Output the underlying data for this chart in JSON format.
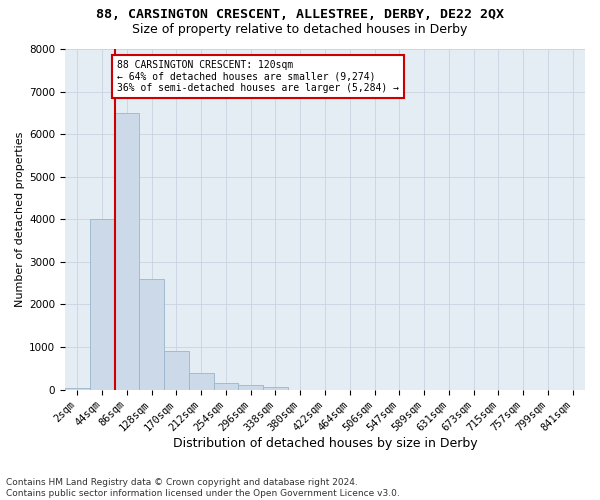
{
  "title1": "88, CARSINGTON CRESCENT, ALLESTREE, DERBY, DE22 2QX",
  "title2": "Size of property relative to detached houses in Derby",
  "xlabel": "Distribution of detached houses by size in Derby",
  "ylabel": "Number of detached properties",
  "footer": "Contains HM Land Registry data © Crown copyright and database right 2024.\nContains public sector information licensed under the Open Government Licence v3.0.",
  "bar_labels": [
    "2sqm",
    "44sqm",
    "86sqm",
    "128sqm",
    "170sqm",
    "212sqm",
    "254sqm",
    "296sqm",
    "338sqm",
    "380sqm",
    "422sqm",
    "464sqm",
    "506sqm",
    "547sqm",
    "589sqm",
    "631sqm",
    "673sqm",
    "715sqm",
    "757sqm",
    "799sqm",
    "841sqm"
  ],
  "bar_values": [
    30,
    4000,
    6500,
    2600,
    900,
    380,
    150,
    100,
    55,
    0,
    0,
    0,
    0,
    0,
    0,
    0,
    0,
    0,
    0,
    0,
    0
  ],
  "bar_color": "#ccd9e8",
  "bar_edge_color": "#9ab5cc",
  "annotation_text": "88 CARSINGTON CRESCENT: 120sqm\n← 64% of detached houses are smaller (9,274)\n36% of semi-detached houses are larger (5,284) →",
  "annotation_box_color": "#ffffff",
  "annotation_border_color": "#cc0000",
  "vline_color": "#cc0000",
  "vline_bar_index": 2,
  "ylim": [
    0,
    8000
  ],
  "yticks": [
    0,
    1000,
    2000,
    3000,
    4000,
    5000,
    6000,
    7000,
    8000
  ],
  "grid_color": "#c8d4e0",
  "bg_color": "#e4ecf4",
  "title1_fontsize": 9.5,
  "title2_fontsize": 9,
  "xlabel_fontsize": 9,
  "ylabel_fontsize": 8,
  "tick_fontsize": 7.5,
  "annot_fontsize": 7,
  "footer_fontsize": 6.5
}
